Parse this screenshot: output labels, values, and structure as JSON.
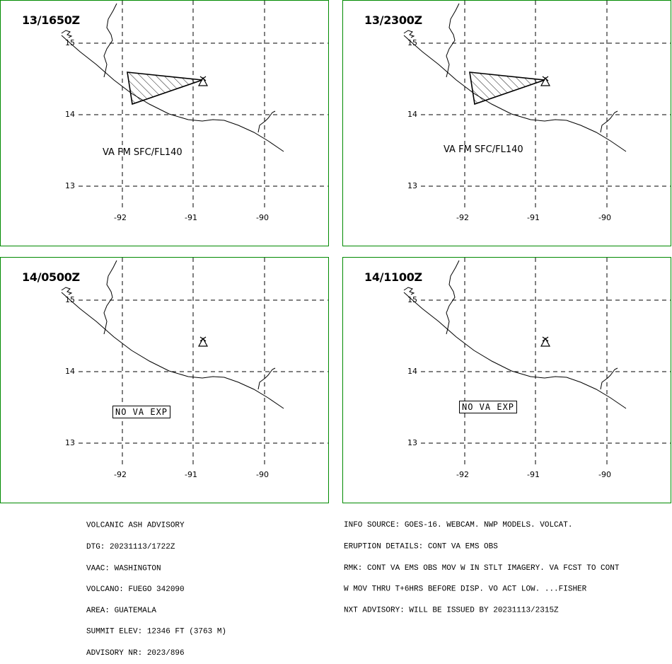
{
  "panels": [
    {
      "time": "13/1650Z",
      "label": "VA FM SFC/FL140",
      "type": "ash"
    },
    {
      "time": "13/2300Z",
      "label": "VA FM SFC/FL140",
      "type": "ash"
    },
    {
      "time": "14/0500Z",
      "label": "NO VA EXP",
      "type": "none"
    },
    {
      "time": "14/1100Z",
      "label": "NO VA EXP",
      "type": "none"
    }
  ],
  "grid": {
    "lat_labels": [
      "15",
      "14",
      "13"
    ],
    "lon_labels": [
      "-92",
      "-91",
      "-90"
    ]
  },
  "advisory_left": [
    "VOLCANIC ASH ADVISORY",
    "DTG: 20231113/1722Z",
    "VAAC: WASHINGTON",
    "VOLCANO: FUEGO 342090",
    "AREA: GUATEMALA",
    "SUMMIT ELEV: 12346 FT (3763 M)",
    "ADVISORY NR: 2023/896"
  ],
  "advisory_right": [
    "INFO SOURCE: GOES-16. WEBCAM. NWP MODELS. VOLCAT.",
    "ERUPTION DETAILS: CONT VA EMS OBS",
    "RMK: CONT VA EMS OBS MOV W IN STLT IMAGERY. VA FCST TO CONT",
    "W MOV THRU T+6HRS BEFORE DISP. VO ACT LOW. ...FISHER",
    "NXT ADVISORY: WILL BE ISSUED BY 20231113/2315Z"
  ]
}
